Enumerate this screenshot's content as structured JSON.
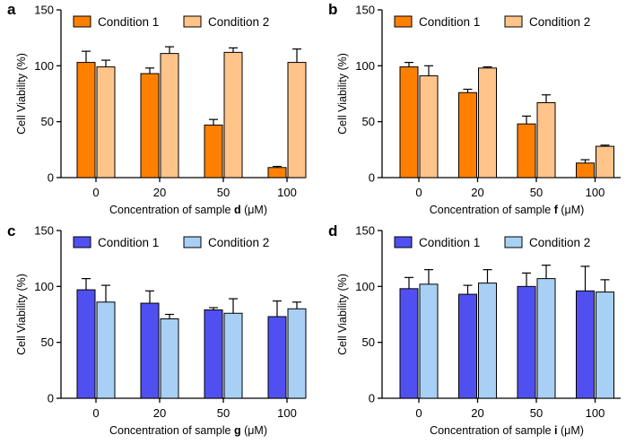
{
  "figure": {
    "colors": {
      "condition1_orange": "#FF8000",
      "condition2_orange": "#FFC48A",
      "condition1_blue": "#5050F0",
      "condition2_blue": "#A8D0F5",
      "axis": "#000000"
    }
  },
  "chart_data": [
    {
      "panel_label": "a",
      "type": "bar",
      "ylabel": "Cell Viability (%)",
      "xlabel_prefix": "Concentration of sample ",
      "xlabel_sample": "d",
      "xlabel_suffix": " (μM)",
      "categories": [
        "0",
        "20",
        "50",
        "100"
      ],
      "ylim": [
        0,
        150
      ],
      "yticks": [
        0,
        50,
        100,
        150
      ],
      "legend_placement": "top",
      "series": [
        {
          "name": "Condition 1",
          "color": "#FF8000",
          "values": [
            103,
            93,
            47,
            9
          ],
          "errors": [
            10,
            5,
            5,
            1
          ]
        },
        {
          "name": "Condition 2",
          "color": "#FFC48A",
          "values": [
            99,
            111,
            112,
            103
          ],
          "errors": [
            6,
            6,
            4,
            12
          ]
        }
      ]
    },
    {
      "panel_label": "b",
      "type": "bar",
      "ylabel": "Cell Viability (%)",
      "xlabel_prefix": "Concentration of sample ",
      "xlabel_sample": "f",
      "xlabel_suffix": " (μM)",
      "categories": [
        "0",
        "20",
        "50",
        "100"
      ],
      "ylim": [
        0,
        150
      ],
      "yticks": [
        0,
        50,
        100,
        150
      ],
      "legend_placement": "top",
      "series": [
        {
          "name": "Condition 1",
          "color": "#FF8000",
          "values": [
            99,
            76,
            48,
            13
          ],
          "errors": [
            4,
            3,
            7,
            3
          ]
        },
        {
          "name": "Condition 2",
          "color": "#FFC48A",
          "values": [
            91,
            98,
            67,
            28
          ],
          "errors": [
            9,
            1,
            7,
            1
          ]
        }
      ]
    },
    {
      "panel_label": "c",
      "type": "bar",
      "ylabel": "Cell Viability (%)",
      "xlabel_prefix": "Concentration of sample ",
      "xlabel_sample": "g",
      "xlabel_suffix": " (μM)",
      "categories": [
        "0",
        "20",
        "50",
        "100"
      ],
      "ylim": [
        0,
        150
      ],
      "yticks": [
        0,
        50,
        100,
        150
      ],
      "legend_placement": "top",
      "series": [
        {
          "name": "Condition 1",
          "color": "#5050F0",
          "values": [
            97,
            85,
            79,
            73
          ],
          "errors": [
            10,
            11,
            2,
            14
          ]
        },
        {
          "name": "Condition 2",
          "color": "#A8D0F5",
          "values": [
            86,
            71,
            76,
            80
          ],
          "errors": [
            15,
            4,
            13,
            6
          ]
        }
      ]
    },
    {
      "panel_label": "d",
      "type": "bar",
      "ylabel": "Cell Viability (%)",
      "xlabel_prefix": "Concentration of sample ",
      "xlabel_sample": "i",
      "xlabel_suffix": " (μM)",
      "categories": [
        "0",
        "20",
        "50",
        "100"
      ],
      "ylim": [
        0,
        150
      ],
      "yticks": [
        0,
        50,
        100,
        150
      ],
      "legend_placement": "top",
      "series": [
        {
          "name": "Condition 1",
          "color": "#5050F0",
          "values": [
            98,
            93,
            100,
            96
          ],
          "errors": [
            10,
            8,
            12,
            22
          ]
        },
        {
          "name": "Condition 2",
          "color": "#A8D0F5",
          "values": [
            102,
            103,
            107,
            95
          ],
          "errors": [
            13,
            12,
            12,
            11
          ]
        }
      ]
    }
  ]
}
